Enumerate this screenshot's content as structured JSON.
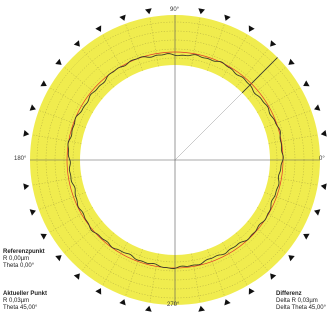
{
  "angle_labels": {
    "top": "90°",
    "left": "180°",
    "right": "0°",
    "bottom": "270°"
  },
  "reference_point": {
    "heading": "Referenzpunkt",
    "r": "R 0,00µm",
    "theta": "Theta 0,00°"
  },
  "actual_point": {
    "heading": "Aktueller Punkt",
    "r": "R 0,03µm",
    "theta": "Theta 45,00°"
  },
  "difference": {
    "heading": "Differenz",
    "delta_r": "Delta R 0,03µm",
    "delta_theta": "Delta Theta 45,00°"
  },
  "colors": {
    "ring_fill": "#f0ec4e",
    "grid": "#b0aa40",
    "trace": "#3a3a2a",
    "reference_circle": "#e0372a",
    "tick_marker": "#111111"
  },
  "features": {
    "angular_divisions": 36,
    "marker_count": 36,
    "cursor_angle_deg": 45
  }
}
